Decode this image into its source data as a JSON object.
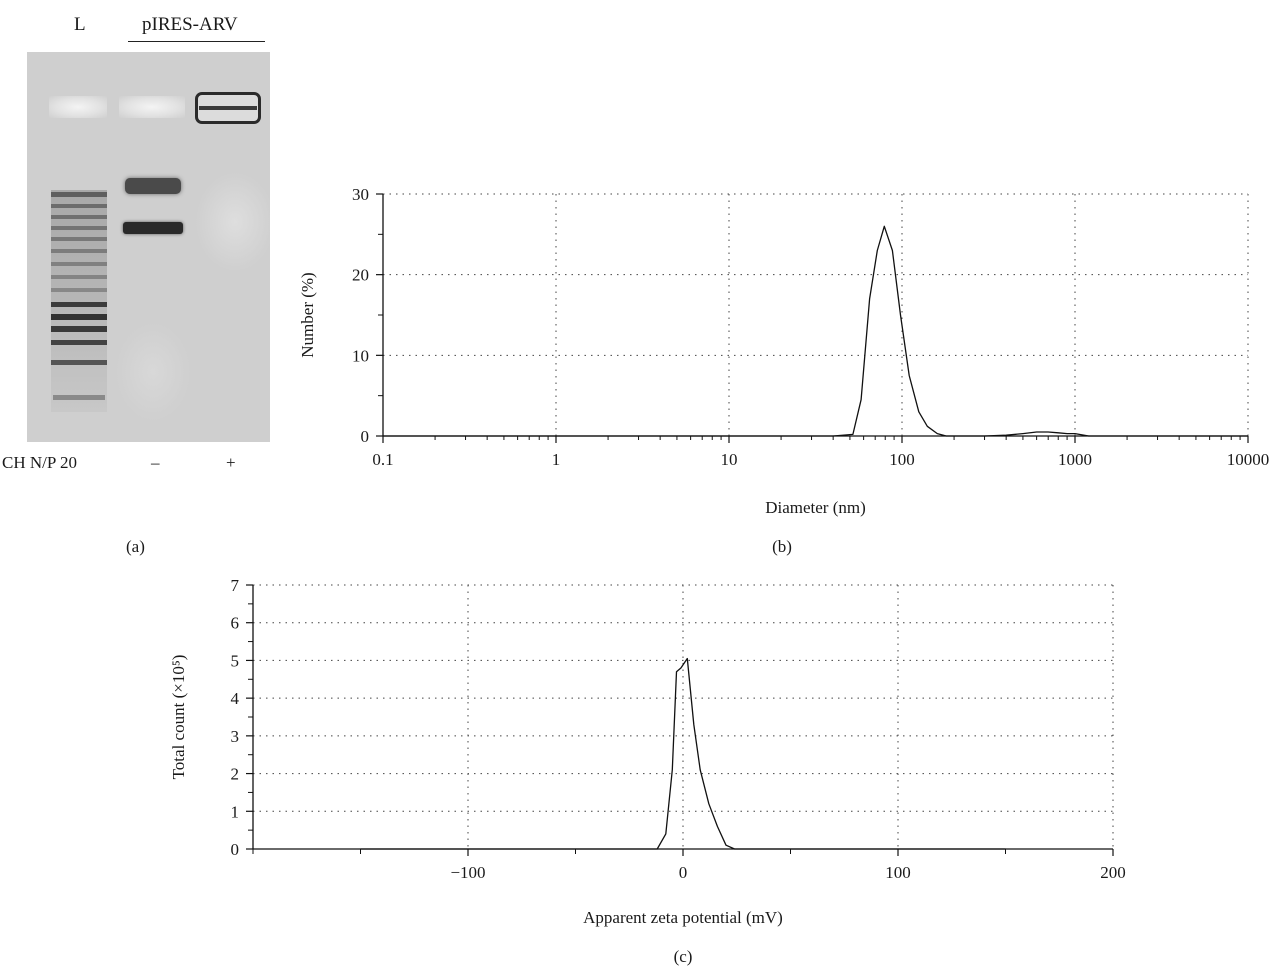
{
  "panel_a": {
    "lane_ladder": "L",
    "plasmid_label": "pIRES-ARV",
    "row_label": "CH N/P 20",
    "lane_minus": "–",
    "lane_plus": "+",
    "caption": "(a)"
  },
  "chart_data": [
    {
      "id": "b",
      "type": "line",
      "caption": "(b)",
      "title": "",
      "xlabel": "Diameter (nm)",
      "ylabel": "Number (%)",
      "xscale": "log",
      "xlim": [
        0.1,
        10000
      ],
      "ylim": [
        0,
        30
      ],
      "xticks": [
        0.1,
        1,
        10,
        100,
        1000,
        10000
      ],
      "xticklabels": [
        "0.1",
        "1",
        "10",
        "100",
        "1000",
        "10000"
      ],
      "yticks": [
        0,
        10,
        20,
        30
      ],
      "yticklabels": [
        "0",
        "10",
        "20",
        "30"
      ],
      "grid": true,
      "series": [
        {
          "x": [
            0.1,
            1,
            10,
            40,
            52,
            58,
            65,
            72,
            79,
            88,
            98,
            110,
            125,
            140,
            160,
            180,
            200,
            300,
            400,
            500,
            600,
            700,
            800,
            900,
            1000,
            1200,
            2000,
            10000
          ],
          "y": [
            0,
            0,
            0,
            0,
            0.2,
            4.5,
            17,
            23,
            26,
            23,
            15,
            7.5,
            3,
            1.2,
            0.3,
            0,
            0,
            0,
            0.1,
            0.3,
            0.5,
            0.5,
            0.4,
            0.3,
            0.3,
            0,
            0,
            0
          ]
        }
      ]
    },
    {
      "id": "c",
      "type": "line",
      "caption": "(c)",
      "title": "",
      "xlabel": "Apparent zeta potential (mV)",
      "ylabel": "Total count (×10⁵)",
      "xlim": [
        -200,
        200
      ],
      "ylim": [
        0,
        7
      ],
      "xticks": [
        -100,
        0,
        100,
        200
      ],
      "xticklabels": [
        "−100",
        "0",
        "100",
        "200"
      ],
      "yticks": [
        0,
        1,
        2,
        3,
        4,
        5,
        6,
        7
      ],
      "yticklabels": [
        "0",
        "1",
        "2",
        "3",
        "4",
        "5",
        "6",
        "7"
      ],
      "grid": true,
      "series": [
        {
          "x": [
            -150,
            -20,
            -12,
            -8,
            -5,
            -3,
            -1,
            2,
            5,
            8,
            12,
            16,
            20,
            24,
            30,
            150
          ],
          "y": [
            0,
            0,
            0,
            0.4,
            2.1,
            4.7,
            4.8,
            5.05,
            3.3,
            2.1,
            1.2,
            0.6,
            0.1,
            0,
            0,
            0
          ]
        }
      ]
    }
  ]
}
